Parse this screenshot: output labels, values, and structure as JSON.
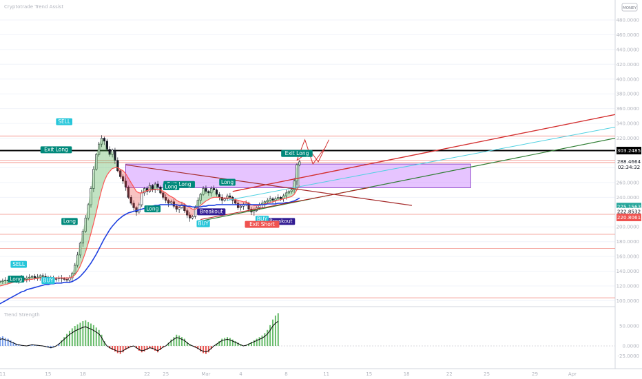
{
  "chart_data": {
    "type": "line",
    "title": "",
    "indicator_label": "Cryptotrade Trend Assist",
    "oscillator_label": "Trend Strength",
    "logo_badge": "MONEY",
    "y_axis_labels": [
      {
        "value": 480,
        "label": "480.0000"
      },
      {
        "value": 460,
        "label": "460.0000"
      },
      {
        "value": 440,
        "label": "440.0000"
      },
      {
        "value": 420,
        "label": "420.0000"
      },
      {
        "value": 400,
        "label": "400.0000"
      },
      {
        "value": 380,
        "label": "380.0000"
      },
      {
        "value": 360,
        "label": "360.0000"
      },
      {
        "value": 340,
        "label": "340.0000"
      },
      {
        "value": 320,
        "label": "320.0000"
      },
      {
        "value": 280,
        "label": "280.0000"
      },
      {
        "value": 260,
        "label": "260.0000"
      },
      {
        "value": 240,
        "label": "240.0000"
      },
      {
        "value": 200,
        "label": "200.0000"
      },
      {
        "value": 180,
        "label": "180.0000"
      },
      {
        "value": 160,
        "label": "160.0000"
      },
      {
        "value": 140,
        "label": "140.0000"
      },
      {
        "value": 120,
        "label": "120.0000"
      },
      {
        "value": 100,
        "label": "100.0000"
      }
    ],
    "y_range": [
      93,
      507
    ],
    "price_tags": [
      {
        "value": 303.2485,
        "label": "303.2485",
        "bg": "#000000",
        "fg": "#ffffff"
      },
      {
        "value": 288.4664,
        "label": "288.4664",
        "bg": "#ffffff",
        "fg": "#131722"
      },
      {
        "value": 281.0,
        "label": "02:34:32",
        "bg": "#ffffff",
        "fg": "#131722"
      },
      {
        "value": 227.4,
        "label": "225.1563",
        "bg": "#26a69a",
        "fg": "#ffffff"
      },
      {
        "value": 220.6,
        "label": "222.8532",
        "bg": "#ffffff",
        "fg": "#131722"
      },
      {
        "value": 212.8,
        "label": "220.8061",
        "bg": "#ef5350",
        "fg": "#ffffff"
      }
    ],
    "oscillator_axis_labels": [
      {
        "value": 50,
        "label": "50.0000"
      },
      {
        "value": 0,
        "label": "0.0000"
      },
      {
        "value": -25,
        "label": "-25.0000"
      }
    ],
    "x_axis_labels": [
      {
        "bar": 1,
        "label": "11"
      },
      {
        "bar": 18,
        "label": "15"
      },
      {
        "bar": 31,
        "label": "18"
      },
      {
        "bar": 55,
        "label": "22"
      },
      {
        "bar": 62,
        "label": "25"
      },
      {
        "bar": 77,
        "label": "Mar"
      },
      {
        "bar": 90,
        "label": "4"
      },
      {
        "bar": 107,
        "label": "8"
      },
      {
        "bar": 122,
        "label": "11"
      },
      {
        "bar": 138,
        "label": "15"
      },
      {
        "bar": 152,
        "label": "18"
      },
      {
        "bar": 168,
        "label": "22"
      },
      {
        "bar": 182,
        "label": "25"
      },
      {
        "bar": 200,
        "label": "29"
      },
      {
        "bar": 214,
        "label": "Apr"
      }
    ],
    "x_range": [
      0,
      230
    ],
    "bars": 118,
    "series": [
      {
        "name": "",
        "color": "#131722",
        "values": [
          126,
          127,
          128,
          127,
          129,
          130,
          128,
          131,
          130,
          129,
          131,
          132,
          133,
          131,
          132,
          134,
          133,
          132,
          131,
          130,
          129,
          130,
          131,
          130,
          129,
          128,
          131,
          137,
          148,
          162,
          178,
          194,
          212,
          230,
          252,
          278,
          298,
          312,
          320,
          316,
          305,
          298,
          304,
          290,
          276,
          268,
          262,
          254,
          240,
          232,
          226,
          220,
          230,
          246,
          252,
          248,
          256,
          250,
          258,
          254,
          246,
          240,
          236,
          232,
          234,
          228,
          224,
          226,
          230,
          222,
          216,
          212,
          214,
          226,
          236,
          244,
          252,
          248,
          246,
          252,
          250,
          244,
          240,
          236,
          238,
          242,
          240,
          236,
          232,
          226,
          228,
          230,
          232,
          224,
          220,
          222,
          226,
          230,
          232,
          234,
          236,
          238,
          236,
          238,
          240,
          238,
          242,
          246,
          248,
          250,
          262,
          284,
          288
        ]
      },
      {
        "name": "",
        "color": "#ff5252",
        "values": [
          120,
          121,
          122,
          123,
          124,
          125,
          126,
          127,
          127,
          128,
          128,
          129,
          129,
          130,
          130,
          131,
          131,
          131,
          131,
          131,
          131,
          131,
          131,
          131,
          131,
          131,
          131,
          132,
          135,
          140,
          147,
          156,
          166,
          178,
          191,
          205,
          220,
          236,
          250,
          262,
          270,
          275,
          279,
          280,
          280,
          278,
          276,
          272,
          266,
          260,
          254,
          248,
          246,
          246,
          248,
          249,
          250,
          250,
          251,
          251,
          250,
          248,
          246,
          243,
          241,
          239,
          236,
          234,
          233,
          231,
          228,
          226,
          224,
          224,
          226,
          229,
          232,
          235,
          237,
          239,
          240,
          240,
          240,
          239,
          239,
          239,
          239,
          238,
          237,
          236,
          235,
          234,
          234,
          232,
          230,
          229,
          229,
          229,
          230,
          231,
          232,
          233,
          234,
          235,
          236,
          237,
          238,
          239,
          240,
          241,
          244,
          250,
          256
        ]
      },
      {
        "name": "",
        "color": "#1e40e0",
        "values": [
          96,
          98,
          100,
          102,
          104,
          106,
          108,
          110,
          112,
          113,
          115,
          116,
          117,
          118,
          119,
          120,
          121,
          122,
          122,
          123,
          123,
          124,
          124,
          124,
          125,
          125,
          125,
          126,
          128,
          130,
          133,
          137,
          141,
          146,
          151,
          157,
          163,
          170,
          177,
          184,
          190,
          196,
          201,
          205,
          209,
          212,
          215,
          217,
          219,
          220,
          221,
          222,
          223,
          224,
          225,
          226,
          227,
          228,
          229,
          229,
          230,
          230,
          230,
          230,
          230,
          230,
          230,
          229,
          229,
          229,
          228,
          228,
          227,
          227,
          227,
          227,
          228,
          228,
          229,
          229,
          229,
          230,
          230,
          230,
          230,
          230,
          230,
          230,
          230,
          230,
          230,
          230,
          230,
          230,
          230,
          230,
          230,
          230,
          230,
          230,
          231,
          231,
          231,
          231,
          232,
          232,
          232,
          233,
          233,
          234,
          235,
          237,
          239
        ]
      }
    ],
    "oscillator_values": [
      22,
      24,
      20,
      18,
      14,
      10,
      6,
      4,
      2,
      1,
      0,
      2,
      4,
      3,
      2,
      1,
      0,
      -2,
      -4,
      -6,
      -4,
      0,
      6,
      14,
      22,
      30,
      38,
      44,
      50,
      54,
      58,
      62,
      64,
      60,
      56,
      52,
      46,
      40,
      28,
      12,
      0,
      -6,
      -10,
      -14,
      -18,
      -20,
      -16,
      -10,
      -6,
      -2,
      0,
      -6,
      -12,
      -16,
      -14,
      -10,
      -6,
      -8,
      -12,
      -16,
      -10,
      -4,
      0,
      8,
      16,
      22,
      28,
      26,
      22,
      18,
      10,
      4,
      0,
      -4,
      -8,
      -14,
      -18,
      -20,
      -16,
      -8,
      0,
      6,
      12,
      18,
      20,
      22,
      20,
      16,
      12,
      8,
      4,
      0,
      2,
      6,
      10,
      14,
      18,
      22,
      26,
      32,
      40,
      52,
      66,
      76,
      82
    ]
  },
  "drawings": {
    "signals": [
      {
        "label": "SELL",
        "kind": "sell",
        "bar": 24,
        "price": 347
      },
      {
        "label": "Exit Long",
        "kind": "exit",
        "bar": 21,
        "price": 309
      },
      {
        "label": "Exit Long",
        "kind": "exit",
        "bar": 67,
        "price": 262
      },
      {
        "label": "Exit Long",
        "kind": "exit",
        "bar": 111,
        "price": 304
      },
      {
        "label": "SELL",
        "kind": "sell",
        "bar": 7,
        "price": 154
      },
      {
        "label": "Long",
        "kind": "long",
        "bar": 26,
        "price": 212
      },
      {
        "label": "BUY",
        "kind": "buy",
        "bar": 18,
        "price": 132
      },
      {
        "label": "Long",
        "kind": "long",
        "bar": 6,
        "price": 134
      },
      {
        "label": "Long",
        "kind": "long",
        "bar": 57,
        "price": 229
      },
      {
        "label": "Long",
        "kind": "long",
        "bar": 64,
        "price": 259
      },
      {
        "label": "Long",
        "kind": "long",
        "bar": 85,
        "price": 265
      },
      {
        "label": "Breakout",
        "kind": "breakout",
        "bar": 79,
        "price": 225
      },
      {
        "label": "Breakout",
        "kind": "breakout",
        "bar": 105,
        "price": 212
      },
      {
        "label": "BUY",
        "kind": "buy",
        "bar": 98,
        "price": 215
      },
      {
        "label": "Exit Short",
        "kind": "exit-short",
        "bar": 98,
        "price": 208
      },
      {
        "label": "BUY",
        "kind": "buy",
        "bar": 76,
        "price": 209
      }
    ]
  }
}
